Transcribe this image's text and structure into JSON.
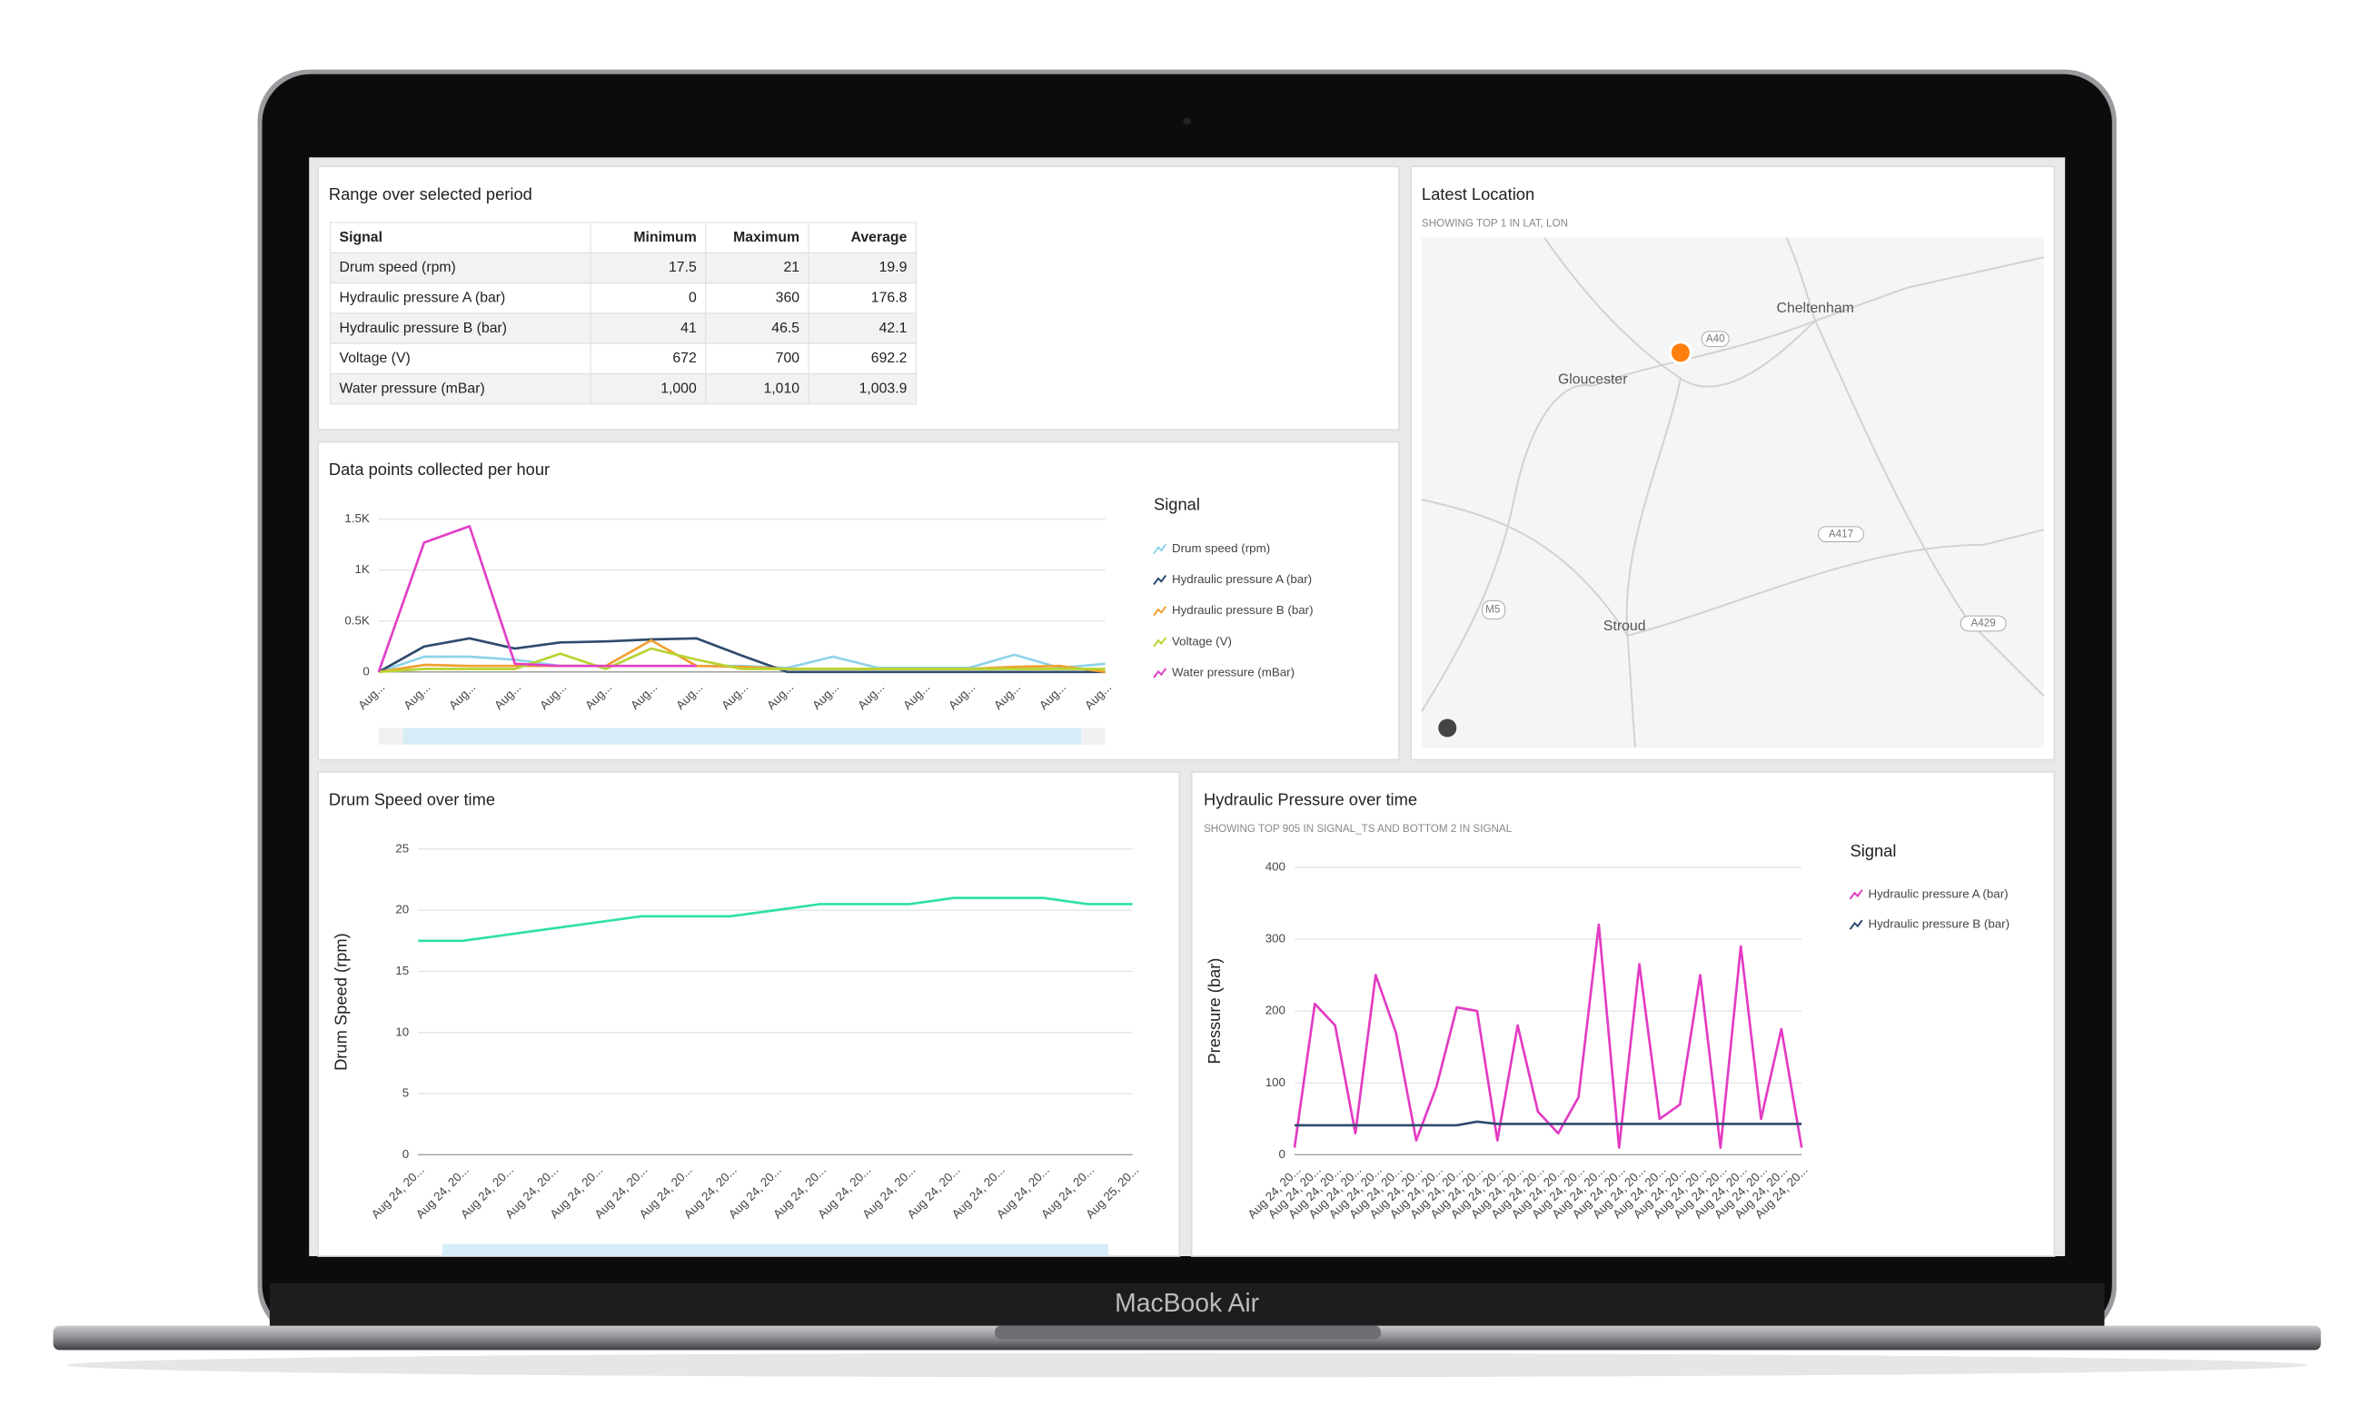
{
  "device_label": "MacBook Air",
  "table": {
    "title": "Range over selected period",
    "columns": [
      "Signal",
      "Minimum",
      "Maximum",
      "Average"
    ],
    "rows": [
      [
        "Drum speed (rpm)",
        "17.5",
        "21",
        "19.9"
      ],
      [
        "Hydraulic pressure A (bar)",
        "0",
        "360",
        "176.8"
      ],
      [
        "Hydraulic pressure B (bar)",
        "41",
        "46.5",
        "42.1"
      ],
      [
        "Voltage (V)",
        "672",
        "700",
        "692.2"
      ],
      [
        "Water pressure (mBar)",
        "1,000",
        "1,010",
        "1,003.9"
      ]
    ]
  },
  "map": {
    "title": "Latest Location",
    "subtitle": "SHOWING TOP 1 IN LAT, LON",
    "places": [
      "Cheltenham",
      "Gloucester",
      "Stroud"
    ],
    "roads": [
      "A40",
      "A417",
      "M5",
      "A429"
    ]
  },
  "chart_data": [
    {
      "type": "line",
      "title": "Data points collected per hour",
      "legend_title": "Signal",
      "categories": [
        "Aug...",
        "Aug...",
        "Aug...",
        "Aug...",
        "Aug...",
        "Aug...",
        "Aug...",
        "Aug...",
        "Aug...",
        "Aug...",
        "Aug...",
        "Aug...",
        "Aug...",
        "Aug...",
        "Aug...",
        "Aug...",
        "Aug..."
      ],
      "ylim": [
        0,
        1500
      ],
      "yticks": [
        0,
        {
          "value": 500,
          "label": "0.5K"
        },
        {
          "value": 1000,
          "label": "1K"
        },
        {
          "value": 1500,
          "label": "1.5K"
        }
      ],
      "series": [
        {
          "name": "Drum speed (rpm)",
          "color": "#8fd3e8",
          "values": [
            0,
            150,
            150,
            120,
            60,
            60,
            60,
            60,
            60,
            40,
            150,
            40,
            40,
            40,
            170,
            40,
            80
          ]
        },
        {
          "name": "Hydraulic pressure A (bar)",
          "color": "#2f4b6e",
          "values": [
            0,
            250,
            330,
            230,
            290,
            300,
            320,
            330,
            160,
            0,
            0,
            0,
            0,
            0,
            0,
            0,
            0
          ]
        },
        {
          "name": "Hydraulic pressure B (bar)",
          "color": "#f0a030",
          "values": [
            0,
            70,
            60,
            60,
            60,
            60,
            310,
            60,
            50,
            30,
            30,
            30,
            30,
            30,
            50,
            60,
            0
          ]
        },
        {
          "name": "Voltage (V)",
          "color": "#b8d432",
          "values": [
            0,
            30,
            30,
            30,
            180,
            30,
            230,
            120,
            30,
            30,
            30,
            30,
            30,
            30,
            30,
            30,
            30
          ]
        },
        {
          "name": "Water pressure (mBar)",
          "color": "#e23fc6",
          "values": [
            0,
            1270,
            1430,
            80,
            60,
            60,
            60,
            60,
            null,
            null,
            null,
            null,
            null,
            null,
            null,
            null,
            null
          ]
        }
      ]
    },
    {
      "type": "line",
      "title": "Drum Speed over time",
      "y_label": "Drum Speed (rpm)",
      "categories": [
        "Aug 24, 20...",
        "Aug 24, 20...",
        "Aug 24, 20...",
        "Aug 24, 20...",
        "Aug 24, 20...",
        "Aug 24, 20...",
        "Aug 24, 20...",
        "Aug 24, 20...",
        "Aug 24, 20...",
        "Aug 24, 20...",
        "Aug 24, 20...",
        "Aug 24, 20...",
        "Aug 24, 20...",
        "Aug 24, 20...",
        "Aug 24, 20...",
        "Aug 24, 20...",
        "Aug 25, 20..."
      ],
      "ylim": [
        0,
        25
      ],
      "yticks": [
        0,
        5,
        10,
        15,
        20,
        25
      ],
      "series": [
        {
          "name": "Drum speed (rpm)",
          "color": "#2fe0a8",
          "values": [
            17.5,
            17.5,
            18,
            18.5,
            19,
            19.5,
            19.5,
            19.5,
            20,
            20.5,
            20.5,
            20.5,
            21,
            21,
            21,
            20.5,
            20.5
          ]
        }
      ]
    },
    {
      "type": "line",
      "title": "Hydraulic Pressure over time",
      "subtitle": "SHOWING TOP 905 IN SIGNAL_TS AND BOTTOM 2 IN SIGNAL",
      "y_label": "Pressure (bar)",
      "legend_title": "Signal",
      "categories": [
        "Aug 24, 20...",
        "Aug 24, 20...",
        "Aug 24, 20...",
        "Aug 24, 20...",
        "Aug 24, 20...",
        "Aug 24, 20...",
        "Aug 24, 20...",
        "Aug 24, 20...",
        "Aug 24, 20...",
        "Aug 24, 20...",
        "Aug 24, 20...",
        "Aug 24, 20...",
        "Aug 24, 20...",
        "Aug 24, 20...",
        "Aug 24, 20...",
        "Aug 24, 20...",
        "Aug 24, 20...",
        "Aug 24, 20...",
        "Aug 24, 20...",
        "Aug 24, 20...",
        "Aug 24, 20...",
        "Aug 24, 20...",
        "Aug 24, 20...",
        "Aug 24, 20...",
        "Aug 24, 20...",
        "Aug 24, 20..."
      ],
      "ylim": [
        0,
        400
      ],
      "yticks": [
        0,
        100,
        200,
        300,
        400
      ],
      "series": [
        {
          "name": "Hydraulic pressure A (bar)",
          "color": "#e33bc3",
          "values": [
            10,
            210,
            180,
            30,
            250,
            170,
            20,
            95,
            205,
            200,
            20,
            180,
            60,
            30,
            80,
            320,
            10,
            265,
            50,
            70,
            250,
            10,
            290,
            50,
            175,
            10
          ]
        },
        {
          "name": "Hydraulic pressure B (bar)",
          "color": "#2f4b6e",
          "values": [
            41,
            41,
            41,
            41,
            41,
            41,
            41,
            41,
            41,
            46,
            43,
            43,
            43,
            43,
            43,
            43,
            43,
            43,
            43,
            43,
            43,
            43,
            43,
            43,
            43,
            43
          ]
        }
      ]
    }
  ]
}
